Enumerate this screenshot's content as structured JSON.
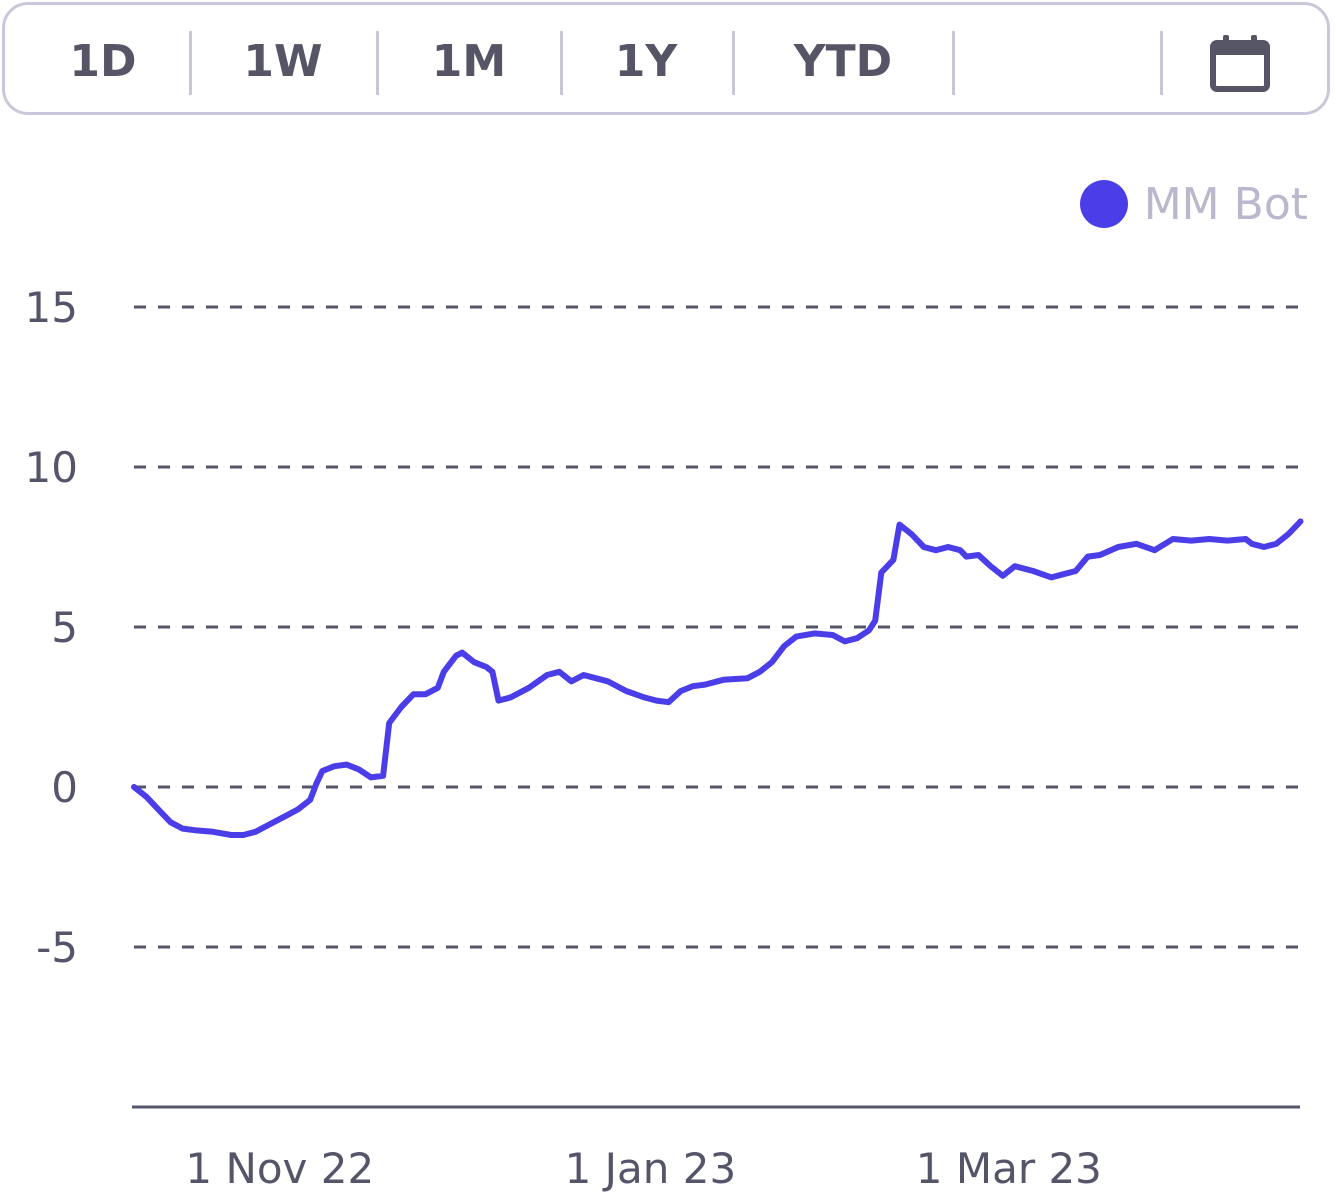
{
  "range_selector": {
    "buttons": [
      "1D",
      "1W",
      "1M",
      "1Y",
      "YTD"
    ],
    "calendar_icon": "calendar-icon"
  },
  "legend": {
    "label": "MM Bot",
    "color": "#4b3ee8"
  },
  "chart_data": {
    "type": "line",
    "title": "",
    "xlabel": "",
    "ylabel": "",
    "ylim": [
      -10,
      15
    ],
    "yticks": [
      15,
      10,
      5,
      0,
      -5
    ],
    "xlim": [
      "2022-10-08",
      "2023-04-12"
    ],
    "xticks": [
      {
        "label": "1 Nov 22",
        "date": "2022-11-01"
      },
      {
        "label": "1 Jan 23",
        "date": "2023-01-01"
      },
      {
        "label": "1 Mar 23",
        "date": "2023-03-01"
      }
    ],
    "grid": "horizontal-dashed",
    "legend_position": "top-right",
    "series": [
      {
        "name": "MM Bot",
        "color": "#4b3ee8",
        "points": [
          [
            "2022-10-08",
            0.0
          ],
          [
            "2022-10-10",
            -0.3
          ],
          [
            "2022-10-12",
            -0.7
          ],
          [
            "2022-10-14",
            -1.1
          ],
          [
            "2022-10-16",
            -1.3
          ],
          [
            "2022-10-18",
            -1.35
          ],
          [
            "2022-10-21",
            -1.4
          ],
          [
            "2022-10-24",
            -1.5
          ],
          [
            "2022-10-26",
            -1.5
          ],
          [
            "2022-10-28",
            -1.4
          ],
          [
            "2022-10-30",
            -1.2
          ],
          [
            "2022-11-02",
            -0.9
          ],
          [
            "2022-11-04",
            -0.7
          ],
          [
            "2022-11-06",
            -0.4
          ],
          [
            "2022-11-07",
            0.1
          ],
          [
            "2022-11-08",
            0.5
          ],
          [
            "2022-11-10",
            0.65
          ],
          [
            "2022-11-12",
            0.7
          ],
          [
            "2022-11-14",
            0.55
          ],
          [
            "2022-11-16",
            0.3
          ],
          [
            "2022-11-18",
            0.35
          ],
          [
            "2022-11-19",
            2.0
          ],
          [
            "2022-11-21",
            2.5
          ],
          [
            "2022-11-23",
            2.9
          ],
          [
            "2022-11-25",
            2.9
          ],
          [
            "2022-11-27",
            3.1
          ],
          [
            "2022-11-28",
            3.6
          ],
          [
            "2022-11-30",
            4.1
          ],
          [
            "2022-12-01",
            4.2
          ],
          [
            "2022-12-03",
            3.9
          ],
          [
            "2022-12-05",
            3.75
          ],
          [
            "2022-12-06",
            3.6
          ],
          [
            "2022-12-07",
            2.7
          ],
          [
            "2022-12-09",
            2.8
          ],
          [
            "2022-12-12",
            3.1
          ],
          [
            "2022-12-15",
            3.5
          ],
          [
            "2022-12-17",
            3.6
          ],
          [
            "2022-12-19",
            3.3
          ],
          [
            "2022-12-21",
            3.5
          ],
          [
            "2022-12-23",
            3.4
          ],
          [
            "2022-12-25",
            3.3
          ],
          [
            "2022-12-28",
            3.0
          ],
          [
            "2022-12-31",
            2.8
          ],
          [
            "2023-01-02",
            2.7
          ],
          [
            "2023-01-04",
            2.65
          ],
          [
            "2023-01-06",
            3.0
          ],
          [
            "2023-01-08",
            3.15
          ],
          [
            "2023-01-10",
            3.2
          ],
          [
            "2023-01-13",
            3.35
          ],
          [
            "2023-01-17",
            3.4
          ],
          [
            "2023-01-19",
            3.6
          ],
          [
            "2023-01-21",
            3.9
          ],
          [
            "2023-01-23",
            4.4
          ],
          [
            "2023-01-25",
            4.7
          ],
          [
            "2023-01-28",
            4.8
          ],
          [
            "2023-01-31",
            4.75
          ],
          [
            "2023-02-02",
            4.55
          ],
          [
            "2023-02-04",
            4.65
          ],
          [
            "2023-02-06",
            4.9
          ],
          [
            "2023-02-07",
            5.2
          ],
          [
            "2023-02-08",
            6.7
          ],
          [
            "2023-02-10",
            7.1
          ],
          [
            "2023-02-11",
            8.2
          ],
          [
            "2023-02-13",
            7.9
          ],
          [
            "2023-02-15",
            7.5
          ],
          [
            "2023-02-17",
            7.4
          ],
          [
            "2023-02-19",
            7.5
          ],
          [
            "2023-02-21",
            7.4
          ],
          [
            "2023-02-22",
            7.2
          ],
          [
            "2023-02-24",
            7.25
          ],
          [
            "2023-02-26",
            6.9
          ],
          [
            "2023-02-28",
            6.6
          ],
          [
            "2023-03-02",
            6.9
          ],
          [
            "2023-03-05",
            6.75
          ],
          [
            "2023-03-08",
            6.55
          ],
          [
            "2023-03-10",
            6.65
          ],
          [
            "2023-03-12",
            6.75
          ],
          [
            "2023-03-14",
            7.2
          ],
          [
            "2023-03-16",
            7.25
          ],
          [
            "2023-03-19",
            7.5
          ],
          [
            "2023-03-22",
            7.6
          ],
          [
            "2023-03-25",
            7.4
          ],
          [
            "2023-03-28",
            7.75
          ],
          [
            "2023-03-31",
            7.7
          ],
          [
            "2023-04-03",
            7.75
          ],
          [
            "2023-04-06",
            7.7
          ],
          [
            "2023-04-09",
            7.75
          ],
          [
            "2023-04-10",
            7.6
          ],
          [
            "2023-04-12",
            7.5
          ],
          [
            "2023-04-14",
            7.6
          ],
          [
            "2023-04-16",
            7.9
          ],
          [
            "2023-04-18",
            8.3
          ]
        ]
      }
    ]
  }
}
